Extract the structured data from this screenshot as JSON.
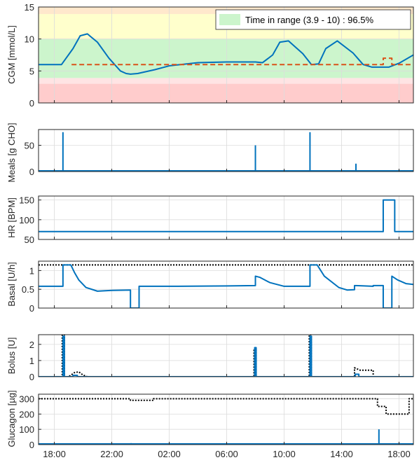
{
  "chart_data": [
    {
      "type": "line",
      "ylabel": "CGM [mmol/L]",
      "ylim": [
        0,
        15
      ],
      "yticks": [
        0,
        5,
        10,
        15
      ],
      "xlim": [
        16.9,
        43.0
      ],
      "bands": [
        {
          "from": 0,
          "to": 3.0,
          "color": "#ffcccc"
        },
        {
          "from": 3.0,
          "to": 3.9,
          "color": "#ffe4e4"
        },
        {
          "from": 3.9,
          "to": 10,
          "color": "#ccf5cc"
        },
        {
          "from": 10,
          "to": 13.9,
          "color": "#ffffcc"
        },
        {
          "from": 13.9,
          "to": 15,
          "color": "#ffe8cc"
        }
      ],
      "legend": {
        "label": "Time in range (3.9 - 10) : 96.5%",
        "swatch_color": "#ccf5cc",
        "placement": "top-right"
      },
      "series": [
        {
          "style": "solid",
          "color": "#0072bd",
          "x": [
            16.9,
            18.5,
            19.3,
            19.8,
            20.3,
            21.0,
            21.8,
            22.6,
            23.0,
            23.3,
            23.8,
            25.0,
            26.0,
            28.0,
            30.0,
            32.0,
            32.5,
            33.2,
            33.7,
            34.3,
            35.3,
            35.9,
            36.4,
            36.9,
            37.7,
            38.8,
            39.5,
            40.1,
            40.6,
            41.3,
            42.0,
            43.0
          ],
          "y": [
            6.0,
            6.0,
            8.5,
            10.5,
            10.8,
            9.5,
            7.0,
            5.0,
            4.6,
            4.5,
            4.6,
            5.2,
            5.8,
            6.3,
            6.4,
            6.4,
            6.3,
            7.5,
            9.5,
            9.7,
            7.7,
            6.0,
            6.1,
            8.5,
            9.7,
            7.8,
            6.0,
            5.6,
            5.6,
            5.6,
            6.2,
            7.5
          ]
        },
        {
          "style": "dashed",
          "color": "#d95319",
          "x": [
            19.2,
            37.0,
            40.9,
            40.9,
            41.5,
            41.5,
            43.0
          ],
          "y": [
            6.0,
            6.0,
            6.0,
            7.0,
            7.0,
            6.0,
            6.0
          ]
        }
      ]
    },
    {
      "type": "line",
      "ylabel": "Meals [g CHO]",
      "ylim": [
        0,
        80
      ],
      "yticks": [
        0,
        50
      ],
      "xlim": [
        16.9,
        43.0
      ],
      "series": [
        {
          "style": "spikes",
          "color": "#0072bd",
          "baseline": 0,
          "x": [
            18.6,
            32.0,
            35.8,
            39.0
          ],
          "y": [
            75,
            50,
            75,
            15
          ]
        }
      ]
    },
    {
      "type": "line",
      "ylabel": "HR [BPM]",
      "ylim": [
        50,
        160
      ],
      "yticks": [
        50,
        100,
        150
      ],
      "xlim": [
        16.9,
        43.0
      ],
      "series": [
        {
          "style": "solid",
          "color": "#0072bd",
          "x": [
            16.9,
            40.9,
            40.9,
            41.7,
            41.7,
            43.0
          ],
          "y": [
            70,
            70,
            150,
            150,
            70,
            70
          ]
        }
      ]
    },
    {
      "type": "line",
      "ylabel": "Basal [U/h]",
      "ylim": [
        0,
        1.25
      ],
      "yticks": [
        0,
        0.5,
        1
      ],
      "xlim": [
        16.9,
        43.0
      ],
      "series": [
        {
          "style": "dotted",
          "color": "#000000",
          "x": [
            16.9,
            43.0
          ],
          "y": [
            1.15,
            1.15
          ]
        },
        {
          "style": "step",
          "color": "#0072bd",
          "x": [
            16.9,
            18.6,
            18.6,
            19.15,
            19.4,
            19.7,
            20.2,
            21.0,
            22.0,
            23.3,
            23.3,
            23.9,
            23.9,
            26.0,
            30.0,
            32.0,
            32.0,
            32.3,
            33.0,
            34.0,
            35.8,
            35.8,
            36.3,
            36.8,
            37.8,
            38.4,
            38.9,
            38.9,
            40.2,
            40.2,
            40.9,
            40.9,
            41.5,
            41.5,
            41.9,
            42.5,
            43.0
          ],
          "y": [
            0.58,
            0.58,
            1.15,
            1.15,
            0.95,
            0.75,
            0.55,
            0.45,
            0.47,
            0.48,
            0.0,
            0.0,
            0.58,
            0.58,
            0.59,
            0.6,
            0.85,
            0.82,
            0.68,
            0.58,
            0.58,
            1.15,
            1.15,
            0.85,
            0.55,
            0.48,
            0.49,
            0.6,
            0.58,
            0.6,
            0.6,
            0.0,
            0.0,
            0.85,
            0.75,
            0.65,
            0.63
          ]
        }
      ]
    },
    {
      "type": "line",
      "ylabel": "Bolus [U]",
      "ylim": [
        0,
        2.6
      ],
      "yticks": [
        0,
        1,
        2
      ],
      "xlim": [
        16.9,
        43.0
      ],
      "series": [
        {
          "style": "dotted",
          "color": "#000000",
          "x": [
            16.9,
            18.55,
            18.55,
            18.7,
            18.7,
            19.0,
            19.4,
            19.7,
            20.0,
            20.3,
            31.9,
            31.9,
            32.05,
            32.05,
            35.75,
            35.75,
            35.9,
            35.9,
            38.9,
            38.9,
            39.3,
            40.2,
            40.2,
            43.0
          ],
          "y": [
            0,
            0,
            2.6,
            2.6,
            0,
            0,
            0.25,
            0.3,
            0.1,
            0,
            0,
            1.75,
            1.75,
            0,
            0,
            2.6,
            2.6,
            0,
            0,
            0.55,
            0.4,
            0.4,
            0,
            0
          ]
        },
        {
          "style": "step",
          "color": "#0072bd",
          "x": [
            16.9,
            18.6,
            18.6,
            18.7,
            18.7,
            19.3,
            19.3,
            19.6,
            19.6,
            31.95,
            31.95,
            32.05,
            32.05,
            35.8,
            35.8,
            35.9,
            35.9,
            38.95,
            38.95,
            39.2,
            39.2,
            43.0
          ],
          "y": [
            0,
            0,
            2.5,
            2.5,
            0,
            0,
            0.08,
            0.08,
            0,
            0,
            1.8,
            1.8,
            0,
            0,
            2.5,
            2.5,
            0,
            0,
            0.15,
            0.15,
            0,
            0
          ]
        }
      ]
    },
    {
      "type": "line",
      "ylabel": "Glucagon [µg]",
      "ylim": [
        0,
        330
      ],
      "yticks": [
        0,
        100,
        200,
        300
      ],
      "xlim": [
        16.9,
        43.0
      ],
      "series": [
        {
          "style": "dotted",
          "color": "#000000",
          "x": [
            16.9,
            23.3,
            23.3,
            24.9,
            24.9,
            40.5,
            40.5,
            41.1,
            41.1,
            42.7,
            42.7,
            43.0
          ],
          "y": [
            300,
            300,
            290,
            290,
            300,
            300,
            250,
            250,
            200,
            200,
            300,
            300
          ]
        },
        {
          "style": "spikes",
          "color": "#0072bd",
          "baseline": 0,
          "x": [
            23.35,
            40.6
          ],
          "y": [
            10,
            100
          ]
        }
      ]
    }
  ],
  "xaxis": {
    "tick_values": [
      18,
      22,
      26,
      30,
      34,
      38,
      42
    ],
    "tick_labels": [
      "18:00",
      "22:00",
      "02:00",
      "06:00",
      "10:00",
      "14:00",
      "18:00"
    ]
  },
  "colors": {
    "series_blue": "#0072bd",
    "reference_red": "#d95319",
    "reference_black": "#000000",
    "axis": "#262626"
  }
}
